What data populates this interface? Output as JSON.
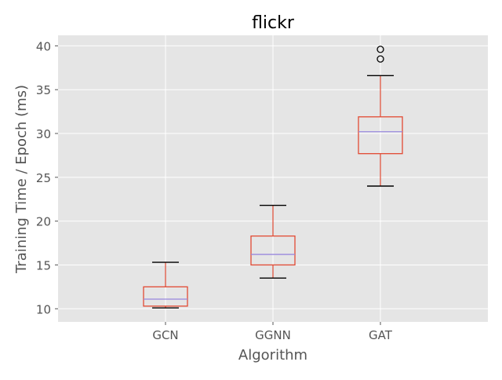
{
  "chart_data": {
    "type": "box",
    "title": "flickr",
    "xlabel": "Algorithm",
    "ylabel": "Training Time / Epoch (ms)",
    "categories": [
      "GCN",
      "GGNN",
      "GAT"
    ],
    "ylim": [
      8.5,
      41.2
    ],
    "yticks": [
      10,
      15,
      20,
      25,
      30,
      35,
      40
    ],
    "grid": true,
    "boxes": [
      {
        "label": "GCN",
        "whisker_low": 10.1,
        "q1": 10.3,
        "median": 11.1,
        "q3": 12.5,
        "whisker_high": 15.3,
        "outliers": []
      },
      {
        "label": "GGNN",
        "whisker_low": 13.5,
        "q1": 15.0,
        "median": 16.2,
        "q3": 18.3,
        "whisker_high": 21.8,
        "outliers": []
      },
      {
        "label": "GAT",
        "whisker_low": 24.0,
        "q1": 27.7,
        "median": 30.2,
        "q3": 31.9,
        "whisker_high": 36.6,
        "outliers": [
          38.5,
          39.6
        ]
      }
    ],
    "colors": {
      "plot_background": "#e5e5e5",
      "grid": "#ffffff",
      "box": "#e24a33",
      "whisker": "#e24a33",
      "cap": "#000000",
      "median": "#8eba42",
      "median_alt": "#9988dd",
      "outlier": "#000000",
      "text": "#555555",
      "title": "#000000"
    }
  }
}
